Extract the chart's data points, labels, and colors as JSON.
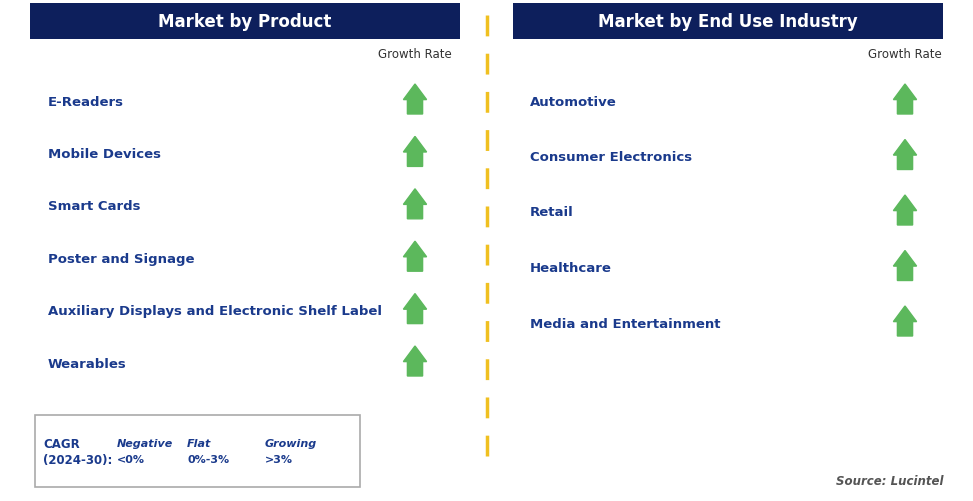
{
  "header_bg_color": "#0d1f5c",
  "header_text_color": "#ffffff",
  "left_header": "Market by Product",
  "right_header": "Market by End Use Industry",
  "label_color": "#1a3a8c",
  "growth_rate_label": "Growth Rate",
  "growth_rate_color": "#333333",
  "left_items": [
    "E-Readers",
    "Mobile Devices",
    "Smart Cards",
    "Poster and Signage",
    "Auxiliary Displays and Electronic Shelf Label",
    "Wearables"
  ],
  "right_items": [
    "Automotive",
    "Consumer Electronics",
    "Retail",
    "Healthcare",
    "Media and Entertainment"
  ],
  "divider_color": "#f0c020",
  "source_text": "Source: Lucintel",
  "cagr_label1": "CAGR",
  "cagr_label2": "(2024-30):",
  "neg_label": "Negative",
  "neg_sub": "<0%",
  "flat_label": "Flat",
  "flat_sub": "0%-3%",
  "grow_label": "Growing",
  "grow_sub": ">3%",
  "arrow_green": "#5cb85c",
  "arrow_red": "#cc2200",
  "arrow_yellow": "#f0a800",
  "bg_color": "#ffffff"
}
